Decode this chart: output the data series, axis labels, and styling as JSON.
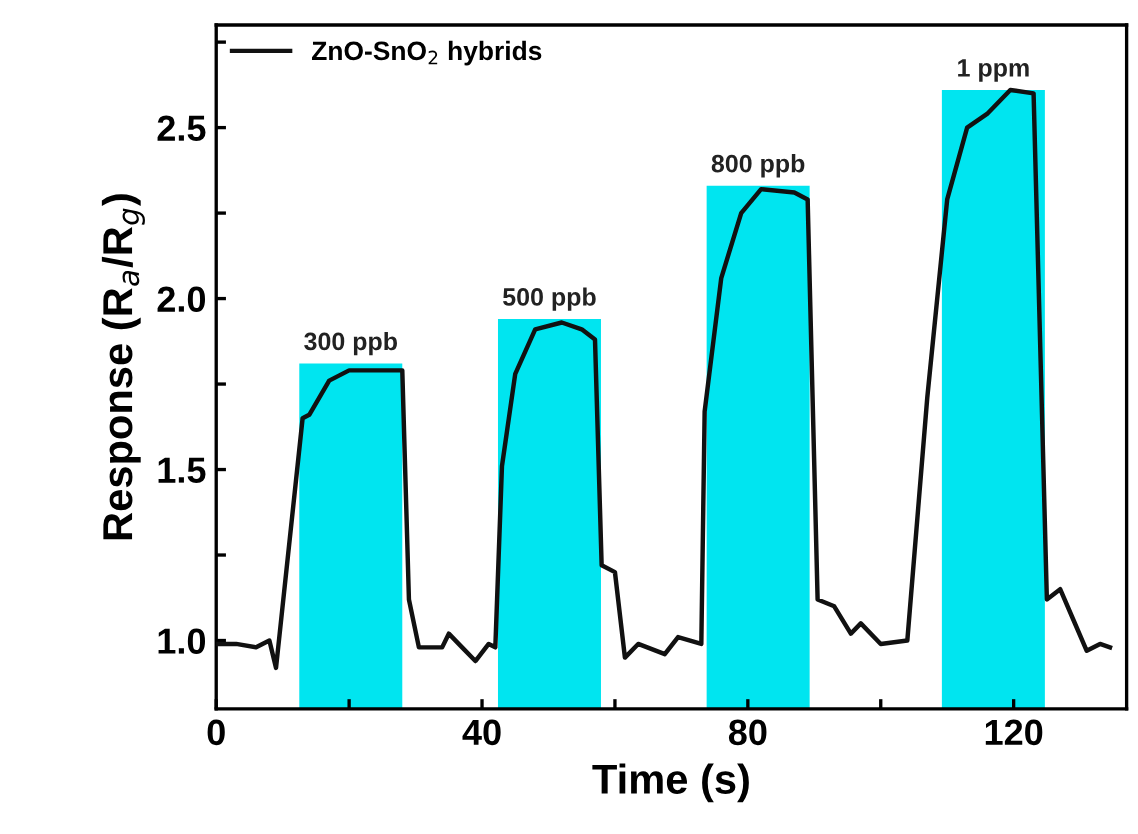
{
  "chart_data": {
    "type": "line",
    "xlabel": "Time (s)",
    "ylabel": "Response (R$_{a}$/R$_{g}$)",
    "xlim": [
      0,
      137
    ],
    "ylim": [
      0.8,
      2.8
    ],
    "xticks": [
      0,
      {
        "value": 20,
        "label": null
      },
      40,
      {
        "value": 60,
        "label": null
      },
      80,
      {
        "value": 100,
        "label": null
      },
      120
    ],
    "yticks": [
      {
        "value": 1.0,
        "label": "1.0"
      },
      {
        "value": 1.25,
        "label": null
      },
      1.5,
      {
        "value": 1.75,
        "label": null
      },
      {
        "value": 2.0,
        "label": "2.0"
      },
      {
        "value": 2.25,
        "label": null
      },
      2.5,
      {
        "value": 2.75,
        "label": null
      }
    ],
    "grid": false,
    "legend": "top left",
    "annotations": [
      {
        "text": "300 ppb",
        "x": 20.25,
        "y": 1.81
      },
      {
        "text": "500 ppb",
        "x": 50.15,
        "y": 1.94
      },
      {
        "text": "800 ppb",
        "x": 81.55,
        "y": 2.33
      },
      {
        "text": "1 ppm",
        "x": 116.95,
        "y": 2.61
      }
    ],
    "series": [
      {
        "type": "bar",
        "color": "#00e5f0",
        "x": [
          20.25,
          50.15,
          81.55,
          116.95
        ],
        "values": [
          1.81,
          1.94,
          2.33,
          2.61
        ]
      },
      {
        "name": "ZnO-SnO$_{2}$ hybrids",
        "color": "#111111",
        "x": [
          0,
          3,
          6,
          8,
          9,
          13,
          14,
          17,
          20,
          24,
          28,
          29,
          30.5,
          34,
          35,
          37,
          39,
          41,
          42,
          43,
          45,
          48,
          52,
          55,
          57,
          58,
          60,
          61.5,
          63.5,
          67.5,
          69.5,
          73,
          73.5,
          76,
          79,
          82,
          87,
          89,
          90.5,
          93,
          95.5,
          97,
          100,
          104,
          107,
          110,
          113,
          116,
          119.5,
          123,
          125,
          127,
          129,
          131,
          133,
          134.5
        ],
        "values": [
          0.99,
          0.99,
          0.98,
          1.0,
          0.92,
          1.65,
          1.66,
          1.76,
          1.79,
          1.79,
          1.79,
          1.12,
          0.98,
          0.98,
          1.02,
          0.98,
          0.94,
          0.99,
          0.98,
          1.51,
          1.78,
          1.91,
          1.93,
          1.91,
          1.88,
          1.22,
          1.2,
          0.95,
          0.99,
          0.96,
          1.01,
          0.99,
          1.67,
          2.06,
          2.25,
          2.32,
          2.31,
          2.29,
          1.12,
          1.1,
          1.02,
          1.05,
          0.99,
          1.0,
          1.71,
          2.29,
          2.5,
          2.54,
          2.61,
          2.6,
          1.12,
          1.15,
          1.06,
          0.97,
          0.99,
          0.98
        ]
      }
    ]
  }
}
